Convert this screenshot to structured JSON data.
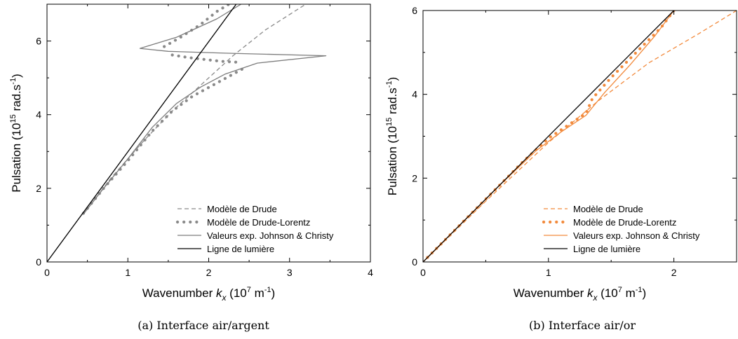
{
  "captions": [
    "(a) Interface air/argent",
    "(b) Interface air/or"
  ],
  "chart_data": [
    {
      "type": "line",
      "caption": "(a) Interface air/argent",
      "xlabel": "Wavenumber k_x (10^7 m^-1)",
      "ylabel": "Pulsation (10^15 rad.s^-1)",
      "xlim": [
        0,
        4
      ],
      "ylim": [
        0,
        7
      ],
      "xticks": [
        0,
        1,
        2,
        3,
        4
      ],
      "yticks": [
        0,
        2,
        4,
        6
      ],
      "xtick_labels": [
        "0",
        "1",
        "2",
        "3",
        "4"
      ],
      "ytick_labels": [
        "0",
        "2",
        "4",
        "6"
      ],
      "grid": false,
      "legend_position": "bottom-right",
      "series": [
        {
          "name": "Modèle de Drude",
          "style": "dashed",
          "color": "#8a8a8a",
          "points": [
            [
              0.45,
              1.3
            ],
            [
              0.8,
              2.3
            ],
            [
              1.2,
              3.3
            ],
            [
              1.55,
              4.1
            ],
            [
              1.9,
              4.8
            ],
            [
              2.3,
              5.6
            ],
            [
              2.7,
              6.3
            ],
            [
              3.2,
              7.0
            ]
          ]
        },
        {
          "name": "Modèle de Drude-Lorentz",
          "style": "dotted",
          "color": "#8a8a8a",
          "branches": [
            [
              [
                0.45,
                1.32
              ],
              [
                0.7,
                2.0
              ],
              [
                1.0,
                2.75
              ],
              [
                1.3,
                3.55
              ],
              [
                1.55,
                4.1
              ],
              [
                1.8,
                4.5
              ],
              [
                2.05,
                4.8
              ],
              [
                2.3,
                5.1
              ],
              [
                2.45,
                5.28
              ]
            ],
            [
              [
                1.55,
                5.62
              ],
              [
                1.75,
                5.55
              ],
              [
                1.95,
                5.5
              ],
              [
                2.15,
                5.45
              ],
              [
                2.4,
                5.42
              ]
            ],
            [
              [
                1.45,
                5.85
              ],
              [
                1.65,
                6.1
              ],
              [
                1.9,
                6.45
              ],
              [
                2.1,
                6.8
              ],
              [
                2.25,
                7.0
              ]
            ]
          ]
        },
        {
          "name": "Valeurs exp. Johnson & Christy",
          "style": "solid",
          "color": "#7d7d7d",
          "branches": [
            [
              [
                0.45,
                1.3
              ],
              [
                0.7,
                2.0
              ],
              [
                1.0,
                2.8
              ],
              [
                1.3,
                3.65
              ],
              [
                1.6,
                4.3
              ],
              [
                1.9,
                4.75
              ],
              [
                2.2,
                5.1
              ],
              [
                2.6,
                5.4
              ],
              [
                3.45,
                5.6
              ],
              [
                2.2,
                5.67
              ],
              [
                1.5,
                5.72
              ],
              [
                1.15,
                5.8
              ],
              [
                1.6,
                6.1
              ],
              [
                2.1,
                6.6
              ],
              [
                2.4,
                7.0
              ]
            ]
          ]
        },
        {
          "name": "Ligne de lumière",
          "style": "solid",
          "color": "#000000",
          "points": [
            [
              0,
              0
            ],
            [
              2.34,
              7.0
            ]
          ]
        }
      ]
    },
    {
      "type": "line",
      "caption": "(b) Interface air/or",
      "xlabel": "Wavenumber k_x (10^7 m^-1)",
      "ylabel": "Pulsation (10^15 rad.s^-1)",
      "xlim": [
        0,
        2.5
      ],
      "ylim": [
        0,
        6
      ],
      "xticks": [
        0,
        1,
        2
      ],
      "yticks": [
        0,
        2,
        4,
        6
      ],
      "xtick_labels": [
        "0",
        "1",
        "2"
      ],
      "ytick_labels": [
        "0",
        "2",
        "4",
        "6"
      ],
      "grid": false,
      "legend_position": "bottom-right",
      "series": [
        {
          "name": "Modèle de Drude",
          "style": "dashed",
          "color": "#f28a3c",
          "points": [
            [
              0,
              0
            ],
            [
              0.5,
              1.45
            ],
            [
              1.0,
              2.85
            ],
            [
              1.4,
              3.85
            ],
            [
              1.8,
              4.75
            ],
            [
              2.2,
              5.45
            ],
            [
              2.5,
              6.0
            ]
          ]
        },
        {
          "name": "Modèle de Drude-Lorentz",
          "style": "dotted",
          "color": "#f28a3c",
          "points": [
            [
              0,
              0
            ],
            [
              0.2,
              0.6
            ],
            [
              0.4,
              1.2
            ],
            [
              0.6,
              1.8
            ],
            [
              0.8,
              2.4
            ],
            [
              1.0,
              2.95
            ],
            [
              1.15,
              3.25
            ],
            [
              1.3,
              3.55
            ],
            [
              1.35,
              3.9
            ],
            [
              1.5,
              4.4
            ],
            [
              1.7,
              5.0
            ],
            [
              1.9,
              5.6
            ],
            [
              2.0,
              6.0
            ]
          ]
        },
        {
          "name": "Valeurs exp. Johnson & Christy",
          "style": "solid",
          "color": "#f28a3c",
          "points": [
            [
              0,
              0
            ],
            [
              0.3,
              0.9
            ],
            [
              0.6,
              1.8
            ],
            [
              0.9,
              2.65
            ],
            [
              1.1,
              3.1
            ],
            [
              1.3,
              3.5
            ],
            [
              1.34,
              3.65
            ],
            [
              1.45,
              4.05
            ],
            [
              1.65,
              4.7
            ],
            [
              1.85,
              5.4
            ],
            [
              2.0,
              6.0
            ]
          ]
        },
        {
          "name": "Ligne de lumière",
          "style": "solid",
          "color": "#000000",
          "points": [
            [
              0,
              0
            ],
            [
              2.0,
              6.0
            ]
          ]
        }
      ]
    }
  ]
}
